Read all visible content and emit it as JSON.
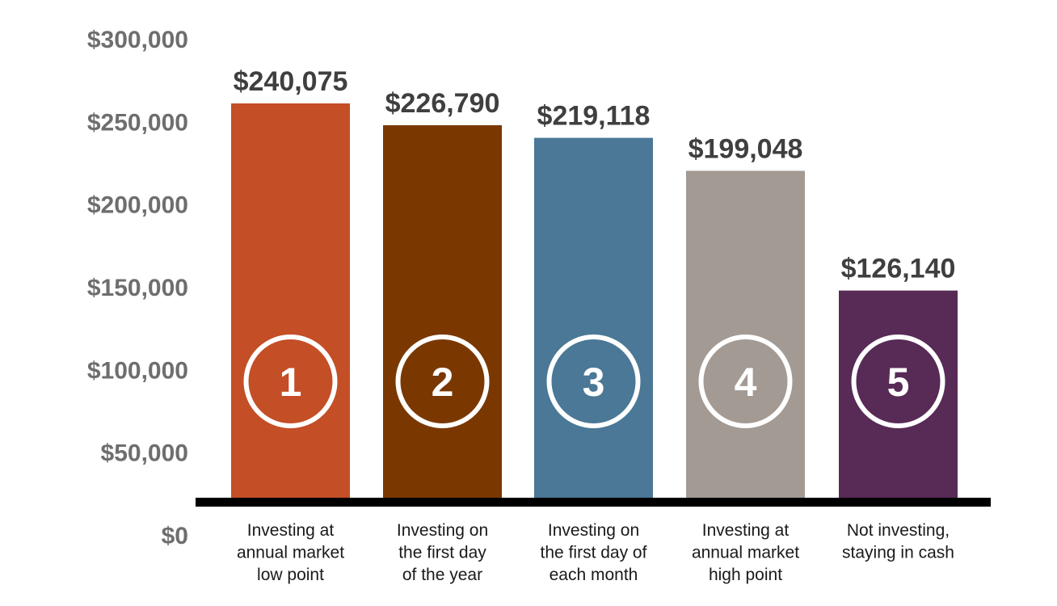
{
  "chart_data": {
    "type": "bar",
    "categories": [
      "Investing at annual market low point",
      "Investing on the first day of the year",
      "Investing on the first day of each month",
      "Investing at annual market high point",
      "Not investing, staying in cash"
    ],
    "category_lines": [
      [
        "Investing at",
        "annual market",
        "low point"
      ],
      [
        "Investing on",
        "the first day",
        "of the year"
      ],
      [
        "Investing on",
        "the first day of",
        "each month"
      ],
      [
        "Investing at",
        "annual market",
        "high point"
      ],
      [
        "Not investing,",
        "staying in cash"
      ]
    ],
    "values": [
      240075,
      226790,
      219118,
      199048,
      126140
    ],
    "value_labels": [
      "$240,075",
      "$226,790",
      "$219,118",
      "$199,048",
      "$126,140"
    ],
    "badges": [
      "1",
      "2",
      "3",
      "4",
      "5"
    ],
    "colors": [
      "#c44e25",
      "#7a3800",
      "#4a7896",
      "#a39a94",
      "#582a56"
    ],
    "ylim": [
      0,
      300000
    ],
    "yticks": [
      0,
      50000,
      100000,
      150000,
      200000,
      250000,
      300000
    ],
    "ytick_labels": [
      "$0",
      "$50,000",
      "$100,000",
      "$150,000",
      "$200,000",
      "$250,000",
      "$300,000"
    ],
    "grid": false,
    "legend": "none"
  }
}
